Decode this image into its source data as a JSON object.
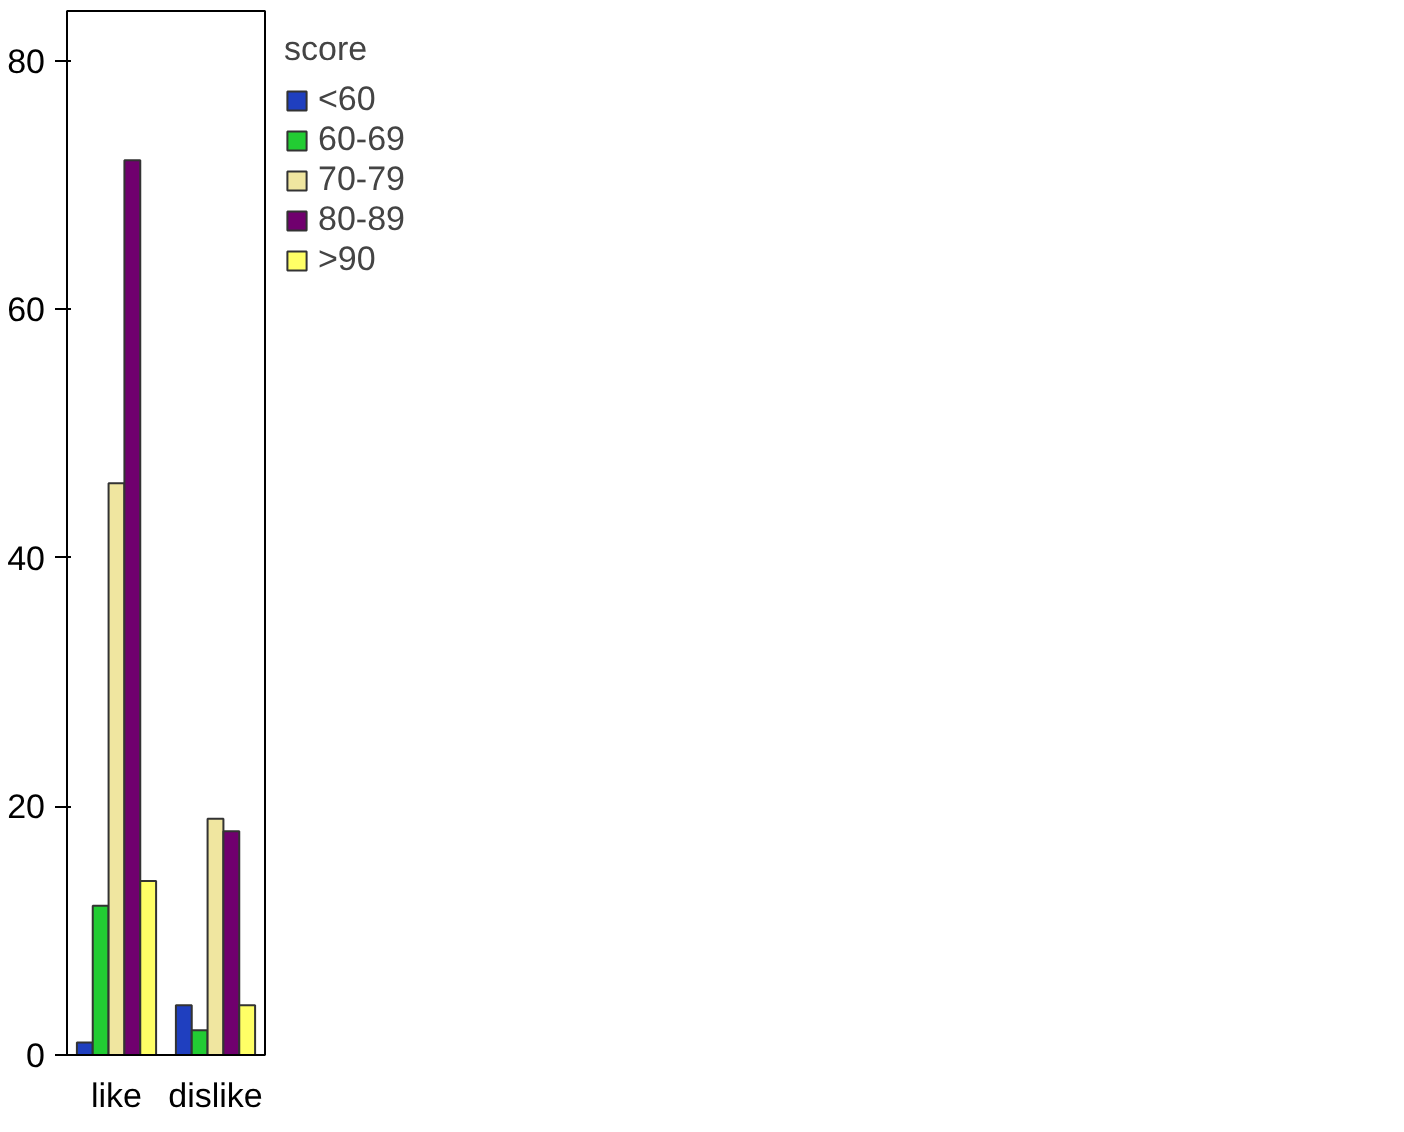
{
  "chart_data": {
    "type": "bar",
    "categories": [
      "like",
      "dislike"
    ],
    "legend_title": "score",
    "legend": "right",
    "grid": false,
    "ylim": [
      0,
      84
    ],
    "yticks": [
      0,
      20,
      40,
      60,
      80
    ],
    "series": [
      {
        "name": "<60",
        "color": "#1f3fbf",
        "values": [
          1,
          4
        ]
      },
      {
        "name": "60-69",
        "color": "#22cc33",
        "values": [
          12,
          2
        ]
      },
      {
        "name": "70-79",
        "color": "#f0e6a0",
        "values": [
          46,
          19
        ]
      },
      {
        "name": "80-89",
        "color": "#70006e",
        "values": [
          72,
          18
        ]
      },
      {
        "name": ">90",
        "color": "#ffff66",
        "values": [
          14,
          4
        ]
      }
    ]
  }
}
